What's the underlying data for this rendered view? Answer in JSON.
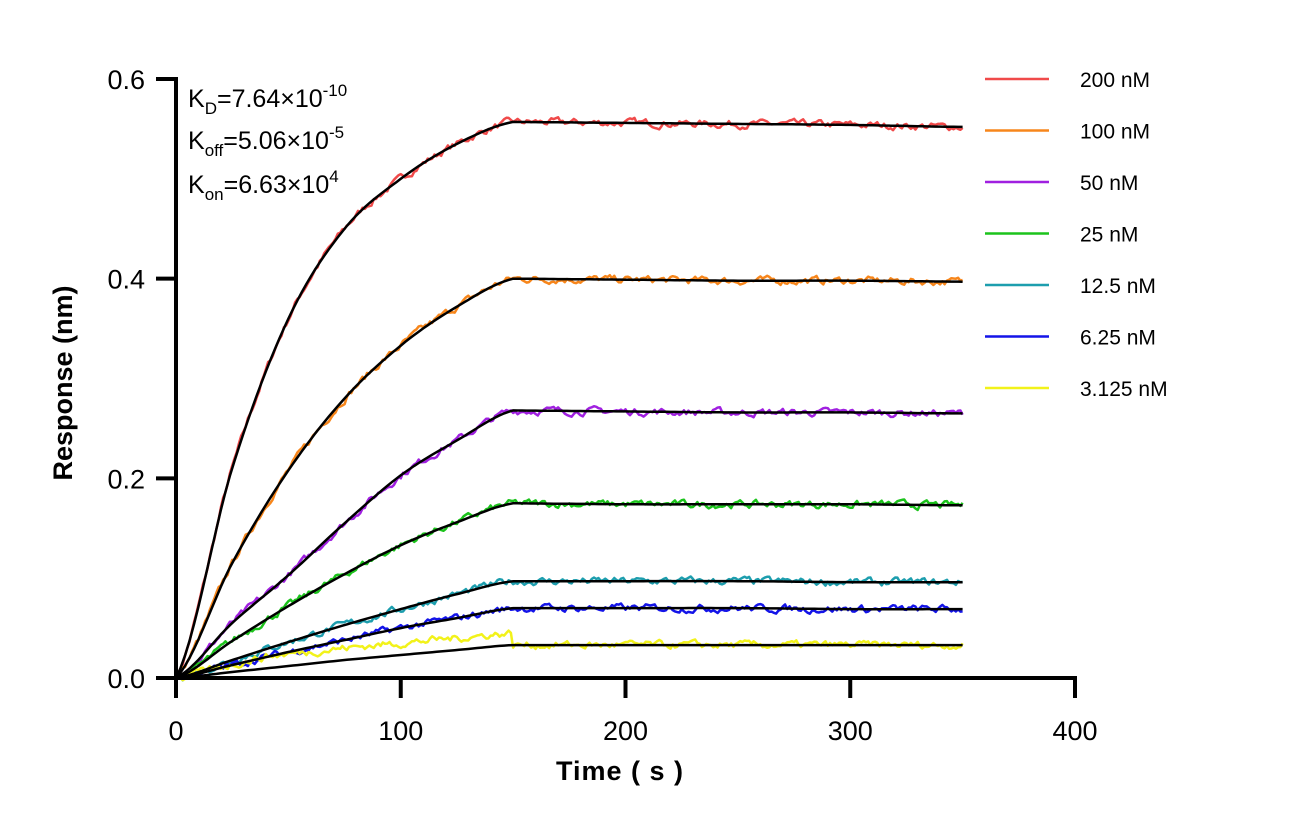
{
  "chart_data": {
    "type": "line",
    "title": "",
    "xlabel": "Time ( s )",
    "ylabel": "Response (nm)",
    "xlim": [
      0,
      400
    ],
    "ylim": [
      0,
      0.6
    ],
    "xticks": [
      "0",
      "100",
      "200",
      "300",
      "400"
    ],
    "yticks": [
      "0.0",
      "0.2",
      "0.4",
      "0.6"
    ],
    "grid": false,
    "legend_position": "right",
    "annotations": {
      "kd": {
        "label": "K",
        "sub": "D",
        "value": "=7.64×10",
        "exp": "-10"
      },
      "koff": {
        "label": "K",
        "sub": "off",
        "value": "=5.06×10",
        "exp": "-5"
      },
      "kon": {
        "label": "K",
        "sub": "on",
        "value": "=6.63×10",
        "exp": "4"
      }
    },
    "fit_color": "#000000",
    "x": [
      0,
      25,
      50,
      75,
      100,
      125,
      150,
      200,
      250,
      300,
      350
    ],
    "series": [
      {
        "name": "200 nM",
        "color": "#f04a4a",
        "values": [
          0,
          0.21,
          0.36,
          0.45,
          0.5,
          0.535,
          0.557,
          0.556,
          0.555,
          0.554,
          0.552
        ]
      },
      {
        "name": "100 nM",
        "color": "#f7861b",
        "values": [
          0,
          0.115,
          0.208,
          0.28,
          0.333,
          0.372,
          0.4,
          0.399,
          0.398,
          0.398,
          0.397
        ]
      },
      {
        "name": "50 nM",
        "color": "#a020e0",
        "values": [
          0,
          0.055,
          0.103,
          0.155,
          0.203,
          0.238,
          0.268,
          0.267,
          0.266,
          0.266,
          0.265
        ]
      },
      {
        "name": "25 nM",
        "color": "#1cc31c",
        "values": [
          0,
          0.037,
          0.072,
          0.104,
          0.133,
          0.156,
          0.175,
          0.174,
          0.174,
          0.174,
          0.173
        ]
      },
      {
        "name": "12.5 nM",
        "color": "#1d9eae",
        "values": [
          0,
          0.018,
          0.036,
          0.053,
          0.069,
          0.084,
          0.097,
          0.097,
          0.097,
          0.096,
          0.096
        ]
      },
      {
        "name": "6.25 nM",
        "color": "#1414e8",
        "values": [
          0,
          0.013,
          0.026,
          0.038,
          0.05,
          0.06,
          0.07,
          0.07,
          0.07,
          0.069,
          0.069
        ]
      },
      {
        "name": "3.125 nM",
        "color": "#f2f21a",
        "values": [
          0,
          0.006,
          0.012,
          0.018,
          0.023,
          0.028,
          0.033,
          0.033,
          0.033,
          0.033,
          0.033
        ]
      }
    ]
  }
}
